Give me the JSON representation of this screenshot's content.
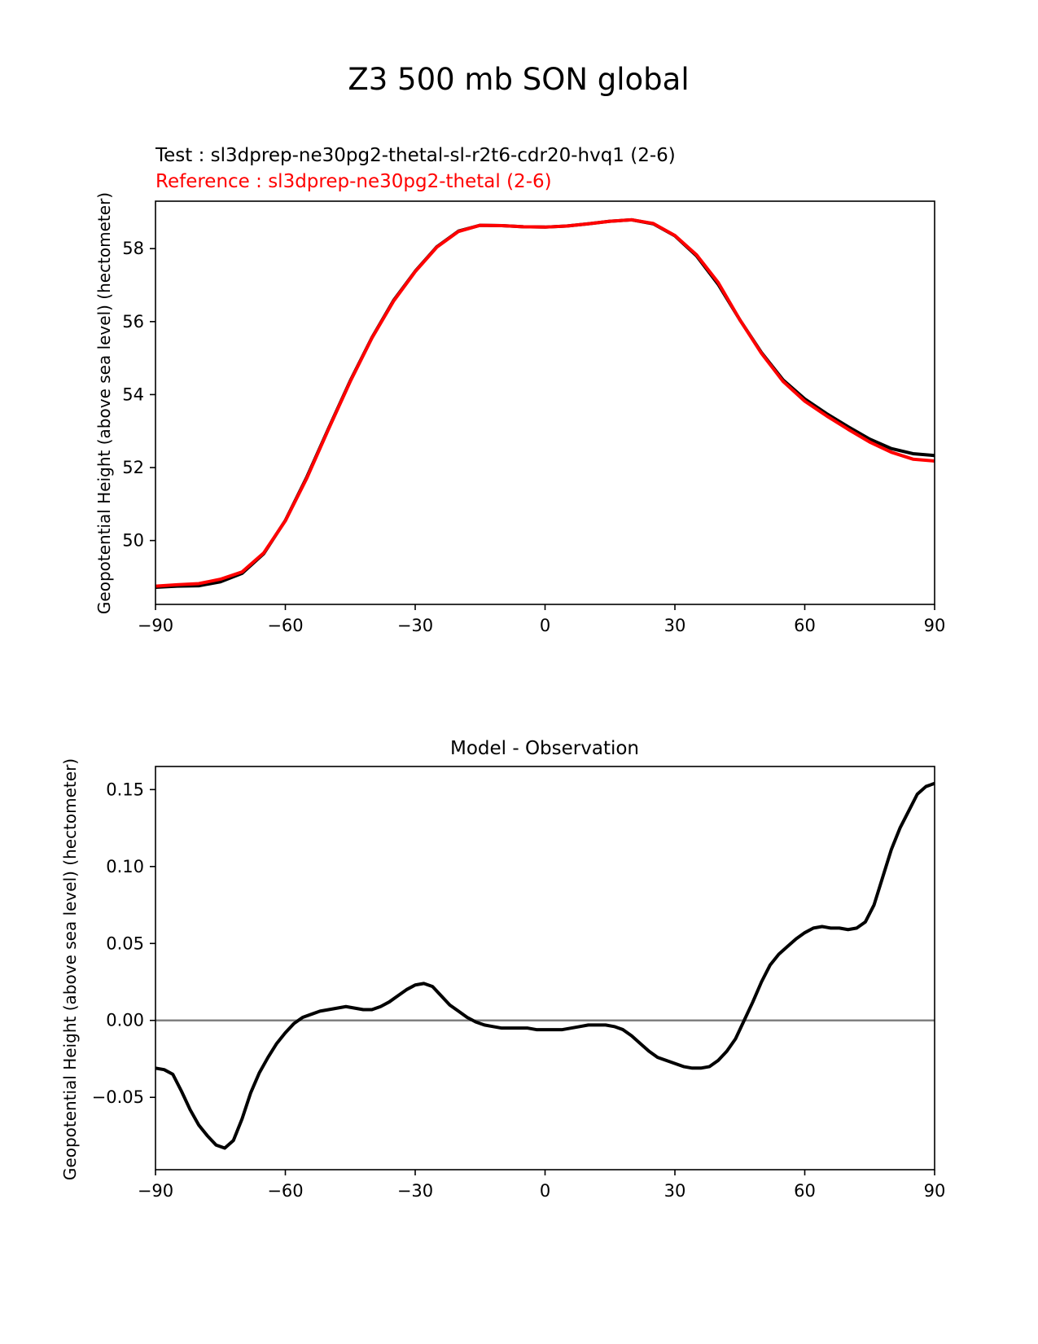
{
  "figure_title": "Z3 500 mb SON global",
  "chart_data": [
    {
      "type": "line",
      "test_label": "Test : sl3dprep-ne30pg2-thetal-sl-r2t6-cdr20-hvq1 (2-6)",
      "reference_label": "Reference : sl3dprep-ne30pg2-thetal (2-6)",
      "xlabel": "",
      "ylabel": "Geopotential Height (above sea level) (hectometer)",
      "xlim": [
        -90,
        90
      ],
      "ylim": [
        48.25,
        59.3
      ],
      "xticks": [
        -90,
        -60,
        -30,
        0,
        30,
        60,
        90
      ],
      "xtick_labels": [
        "−90",
        "−60",
        "−30",
        "0",
        "30",
        "60",
        "90"
      ],
      "yticks": [
        50,
        52,
        54,
        56,
        58
      ],
      "ytick_labels": [
        "50",
        "52",
        "54",
        "56",
        "58"
      ],
      "series": [
        {
          "name": "Test",
          "color": "#000000",
          "x": [
            -90,
            -85,
            -80,
            -75,
            -70,
            -65,
            -60,
            -55,
            -50,
            -45,
            -40,
            -35,
            -30,
            -25,
            -20,
            -15,
            -10,
            -5,
            0,
            5,
            10,
            15,
            20,
            25,
            30,
            35,
            40,
            45,
            50,
            55,
            60,
            65,
            70,
            75,
            80,
            85,
            90
          ],
          "y": [
            48.72,
            48.75,
            48.76,
            48.87,
            49.1,
            49.64,
            50.55,
            51.75,
            53.08,
            54.38,
            55.56,
            56.58,
            57.38,
            58.05,
            58.48,
            58.64,
            58.63,
            58.6,
            58.59,
            58.62,
            58.68,
            58.75,
            58.79,
            58.68,
            58.35,
            57.8,
            57.02,
            56.05,
            55.15,
            54.4,
            53.88,
            53.48,
            53.12,
            52.78,
            52.52,
            52.38,
            52.33
          ]
        },
        {
          "name": "Reference",
          "color": "#ff0000",
          "x": [
            -90,
            -85,
            -80,
            -75,
            -70,
            -65,
            -60,
            -55,
            -50,
            -45,
            -40,
            -35,
            -30,
            -25,
            -20,
            -15,
            -10,
            -5,
            0,
            5,
            10,
            15,
            20,
            25,
            30,
            35,
            40,
            45,
            50,
            55,
            60,
            65,
            70,
            75,
            80,
            85,
            90
          ],
          "y": [
            48.75,
            48.79,
            48.82,
            48.94,
            49.14,
            49.66,
            50.54,
            51.72,
            53.06,
            54.36,
            55.55,
            56.56,
            57.37,
            58.04,
            58.47,
            58.64,
            58.63,
            58.6,
            58.59,
            58.62,
            58.68,
            58.75,
            58.79,
            58.69,
            58.36,
            57.83,
            57.07,
            56.05,
            55.13,
            54.36,
            53.82,
            53.42,
            53.05,
            52.7,
            52.42,
            52.23,
            52.18
          ]
        }
      ]
    },
    {
      "type": "line",
      "title": "Model - Observation",
      "xlabel": "",
      "ylabel": "Geopotential Height (above sea level) (hectometer)",
      "xlim": [
        -90,
        90
      ],
      "ylim": [
        -0.097,
        0.165
      ],
      "xticks": [
        -90,
        -60,
        -30,
        0,
        30,
        60,
        90
      ],
      "xtick_labels": [
        "−90",
        "−60",
        "−30",
        "0",
        "30",
        "60",
        "90"
      ],
      "yticks": [
        -0.05,
        0.0,
        0.05,
        0.1,
        0.15
      ],
      "ytick_labels": [
        "−0.05",
        "0.00",
        "0.05",
        "0.10",
        "0.15"
      ],
      "zero_line": {
        "y": 0,
        "color": "#808080"
      },
      "series": [
        {
          "name": "Model - Observation",
          "color": "#000000",
          "x": [
            -90,
            -88,
            -86,
            -84,
            -82,
            -80,
            -78,
            -76,
            -74,
            -72,
            -70,
            -68,
            -66,
            -64,
            -62,
            -60,
            -58,
            -56,
            -54,
            -52,
            -50,
            -48,
            -46,
            -44,
            -42,
            -40,
            -38,
            -36,
            -34,
            -32,
            -30,
            -28,
            -26,
            -24,
            -22,
            -20,
            -18,
            -16,
            -14,
            -12,
            -10,
            -8,
            -6,
            -4,
            -2,
            0,
            2,
            4,
            6,
            8,
            10,
            12,
            14,
            16,
            18,
            20,
            22,
            24,
            26,
            28,
            30,
            32,
            34,
            36,
            38,
            40,
            42,
            44,
            46,
            48,
            50,
            52,
            54,
            56,
            58,
            60,
            62,
            64,
            66,
            68,
            70,
            72,
            74,
            76,
            78,
            80,
            82,
            84,
            86,
            88,
            90
          ],
          "y": [
            -0.031,
            -0.032,
            -0.035,
            -0.046,
            -0.058,
            -0.068,
            -0.075,
            -0.081,
            -0.083,
            -0.078,
            -0.064,
            -0.047,
            -0.034,
            -0.024,
            -0.015,
            -0.008,
            -0.002,
            0.002,
            0.004,
            0.006,
            0.007,
            0.008,
            0.009,
            0.008,
            0.007,
            0.007,
            0.009,
            0.012,
            0.016,
            0.02,
            0.023,
            0.024,
            0.022,
            0.016,
            0.01,
            0.006,
            0.002,
            -0.001,
            -0.003,
            -0.004,
            -0.005,
            -0.005,
            -0.005,
            -0.005,
            -0.006,
            -0.006,
            -0.006,
            -0.006,
            -0.005,
            -0.004,
            -0.003,
            -0.003,
            -0.003,
            -0.004,
            -0.006,
            -0.01,
            -0.015,
            -0.02,
            -0.024,
            -0.026,
            -0.028,
            -0.03,
            -0.031,
            -0.031,
            -0.03,
            -0.026,
            -0.02,
            -0.012,
            0.0,
            0.012,
            0.025,
            0.036,
            0.043,
            0.048,
            0.053,
            0.057,
            0.06,
            0.061,
            0.06,
            0.06,
            0.059,
            0.06,
            0.064,
            0.075,
            0.093,
            0.111,
            0.125,
            0.136,
            0.147,
            0.152,
            0.154
          ]
        }
      ]
    }
  ]
}
